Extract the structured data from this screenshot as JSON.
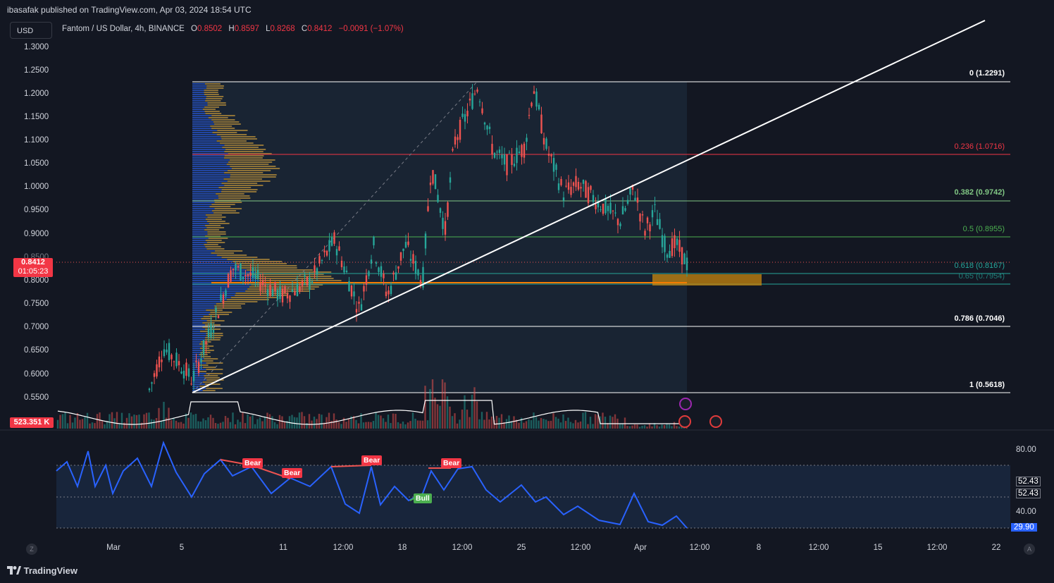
{
  "header": {
    "published_by": "ibasafak published on TradingView.com, Apr 03, 2024 18:54 UTC"
  },
  "toolbar": {
    "currency_button": "USD"
  },
  "symbol": {
    "name": "Fantom / US Dollar, 4h, BINANCE",
    "open_label": "O",
    "open": "0.8502",
    "high_label": "H",
    "high": "0.8597",
    "low_label": "L",
    "low": "0.8268",
    "close_label": "C",
    "close": "0.8412",
    "change": "−0.0091 (−1.07%)"
  },
  "price_axis": {
    "ticks": [
      "1.3000",
      "1.2500",
      "1.2000",
      "1.1500",
      "1.1000",
      "1.0500",
      "1.0000",
      "0.9500",
      "0.9000",
      "0.8500",
      "0.8000",
      "0.7500",
      "0.7000",
      "0.6500",
      "0.6000",
      "0.5500"
    ],
    "current_price": "0.8412",
    "countdown": "01:05:23",
    "volume_label": "523.351 K"
  },
  "fib_levels": [
    {
      "label": "0 (1.2291)",
      "color": "#ffffff"
    },
    {
      "label": "0.236 (1.0716)",
      "color": "#f23645"
    },
    {
      "label": "0.382 (0.9742)",
      "color": "#81c784"
    },
    {
      "label": "0.5 (0.8955)",
      "color": "#4caf50"
    },
    {
      "label": "0.618 (0.8167)",
      "color": "#26a69a"
    },
    {
      "label": "0.65 (0.7954)",
      "color": "#26a69a"
    },
    {
      "label": "0.786 (0.7046)",
      "color": "#ffffff"
    },
    {
      "label": "1 (0.5618)",
      "color": "#ffffff"
    }
  ],
  "rsi_axis": {
    "ticks": [
      "80.00",
      "40.00"
    ],
    "value_a": "52.43",
    "value_b": "52.43",
    "current": "29.90"
  },
  "signals": {
    "bear": "Bear",
    "bull": "Bull"
  },
  "time_axis": [
    "Mar",
    "5",
    "11",
    "12:00",
    "18",
    "12:00",
    "25",
    "12:00",
    "Apr",
    "12:00",
    "8",
    "12:00",
    "15",
    "12:00",
    "22"
  ],
  "footer": {
    "brand": "TradingView",
    "corner_left": "Z",
    "corner_right": "A"
  },
  "colors": {
    "up": "#26a69a",
    "down": "#ef5350",
    "rsi": "#2962ff",
    "background": "#131722"
  }
}
